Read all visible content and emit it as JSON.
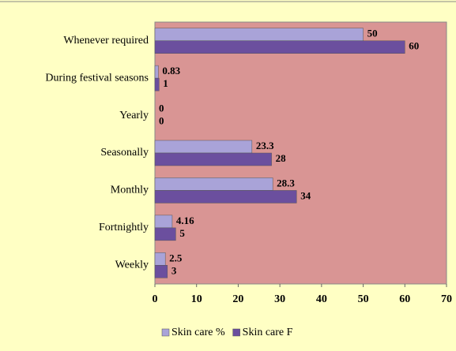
{
  "chart_data": {
    "type": "bar",
    "orientation": "horizontal",
    "categories": [
      "Whenever required",
      "During festival seasons",
      "Yearly",
      "Seasonally",
      "Monthly",
      "Fortnightly",
      "Weekly"
    ],
    "series": [
      {
        "name": "Skin care %",
        "color": "#a9a3d8",
        "values": [
          50,
          0.83,
          0,
          23.3,
          28.3,
          4.16,
          2.5
        ]
      },
      {
        "name": "Skin care F",
        "color": "#6b4f9e",
        "values": [
          60,
          1,
          0,
          28,
          34,
          5,
          3
        ]
      }
    ],
    "xlim": [
      0,
      70
    ],
    "xticks": [
      0,
      10,
      20,
      30,
      40,
      50,
      60,
      70
    ],
    "background": "#ffffc4",
    "plot_background": "#d99594",
    "legend": "bottom"
  }
}
